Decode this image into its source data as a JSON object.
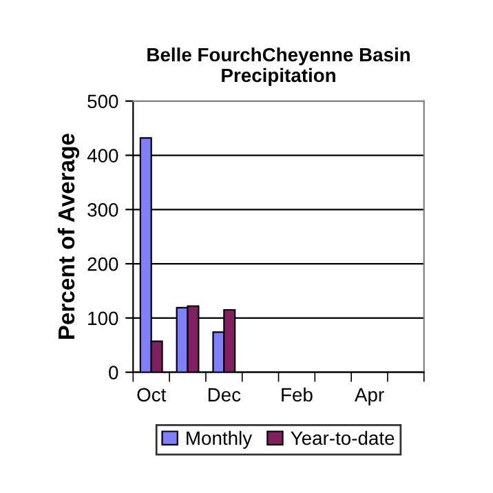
{
  "chart_data": {
    "type": "bar",
    "title": "Belle FourchCheyenne Basin\nPrecipitation",
    "ylabel": "Percent of Average",
    "categories": [
      "Oct",
      null,
      "Dec",
      null,
      "Feb",
      null,
      "Apr",
      null
    ],
    "series": [
      {
        "name": "Monthly",
        "color": "#8080ff",
        "values": [
          432,
          119,
          74,
          null,
          null,
          null,
          null,
          null
        ]
      },
      {
        "name": "Year-to-date",
        "color": "#802060",
        "values": [
          57,
          122,
          115,
          null,
          null,
          null,
          null,
          null
        ]
      }
    ],
    "ylim": [
      0,
      500
    ],
    "yticks": [
      0,
      100,
      200,
      300,
      400,
      500
    ],
    "grid": "y",
    "legend": "bottom"
  }
}
